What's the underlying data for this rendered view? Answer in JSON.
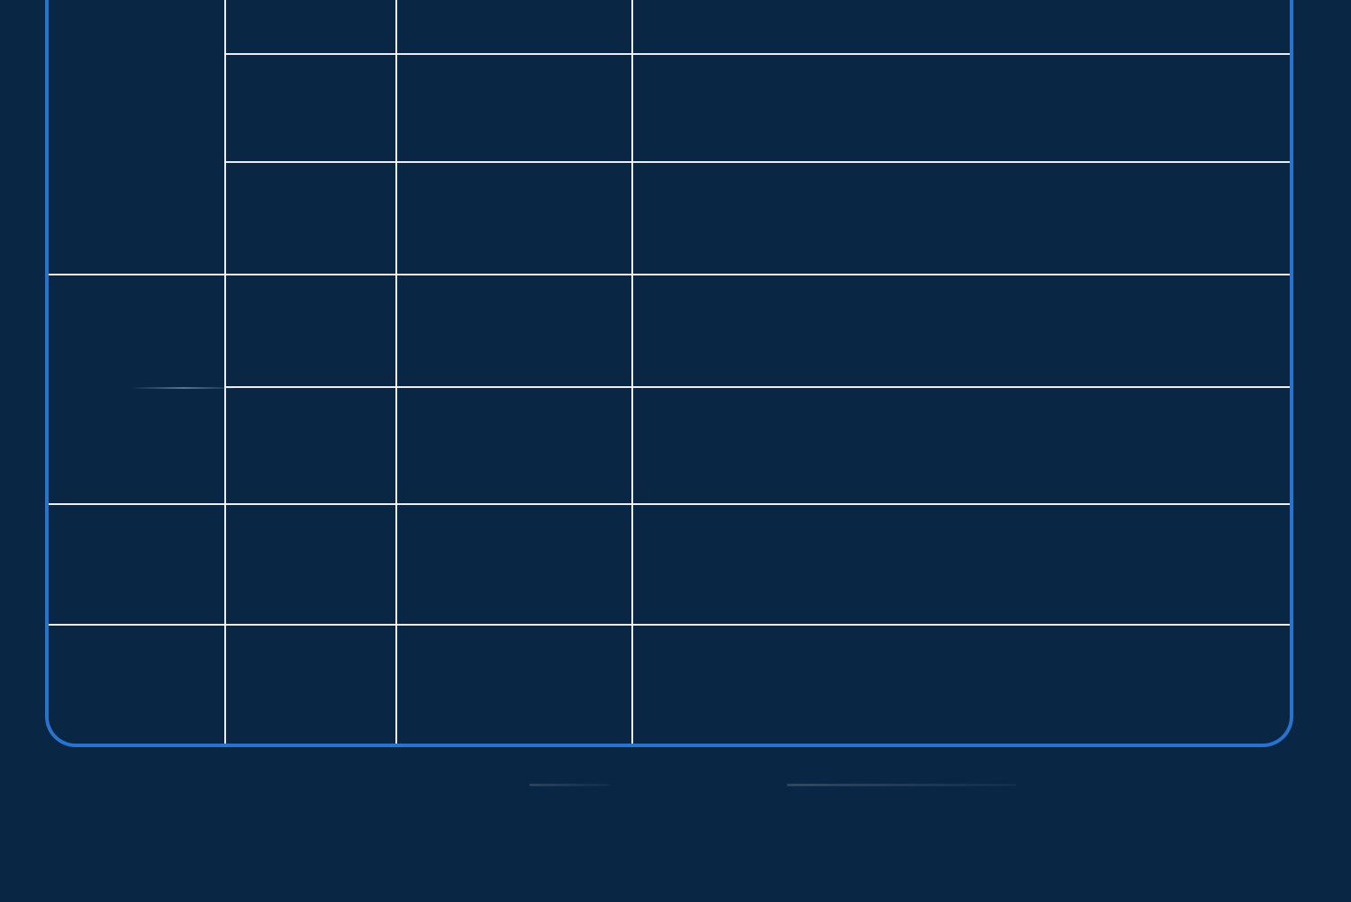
{
  "screen": {
    "title": "",
    "background_color": "#092645",
    "accent_color": "#2a73cc",
    "line_color": "#f4f6fb"
  },
  "table": {
    "cells": [
      "",
      "",
      "",
      "",
      "",
      "",
      "",
      "",
      "",
      "",
      "",
      "",
      "",
      "",
      "",
      "",
      "",
      "",
      "",
      "",
      "",
      "",
      "",
      "",
      ""
    ]
  },
  "footer": {
    "left_text": "",
    "right_text": ""
  }
}
